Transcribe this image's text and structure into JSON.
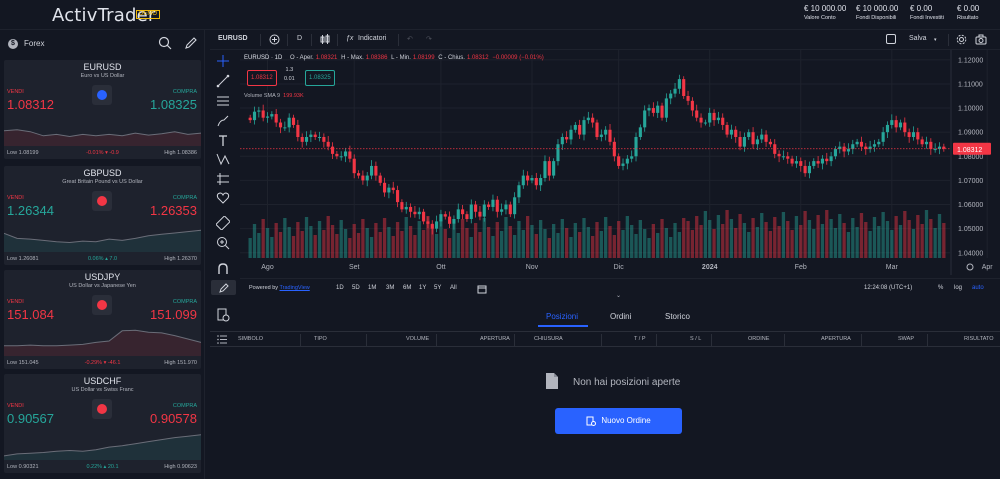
{
  "header": {
    "logo": "ActivTrader",
    "badge": "DEMO",
    "stats": [
      {
        "value": "€ 10 000.00",
        "label": "Valore Conto"
      },
      {
        "value": "€ 10 000.00",
        "label": "Fondi Disponibili"
      },
      {
        "value": "€ 0.00",
        "label": "Fondi Investiti"
      },
      {
        "value": "€ 0.00",
        "label": "Risultato"
      }
    ]
  },
  "sidebar": {
    "title": "Forex",
    "cards": [
      {
        "symbol": "EURUSD",
        "desc": "Euro vs US Dollar",
        "sell_label": "VENDI",
        "buy_label": "COMPRA",
        "sell": "1.08312",
        "buy": "1.08325",
        "sell_color": "red",
        "buy_color": "green",
        "low": "Low 1.08199",
        "change": "-0.01%  ▾ -0.9",
        "change_color": "red",
        "high": "High 1.08386",
        "flag_color": "#2962ff",
        "spark": [
          0.55,
          0.52,
          0.58,
          0.7,
          0.66,
          0.72,
          0.66,
          0.7,
          0.66,
          0.7,
          0.62,
          0.68,
          0.64,
          0.58,
          0.66,
          0.62
        ]
      },
      {
        "symbol": "GBPUSD",
        "desc": "Great Britain Pound vs US Dollar",
        "sell_label": "VENDI",
        "buy_label": "COMPRA",
        "sell": "1.26344",
        "buy": "1.26353",
        "sell_color": "green",
        "buy_color": "red",
        "low": "Low 1.26081",
        "change": "0.06%  ▴ 7.0",
        "change_color": "green",
        "high": "High 1.26370",
        "flag_color": "#f23645",
        "spark": [
          0.45,
          0.6,
          0.62,
          0.66,
          0.7,
          0.72,
          0.68,
          0.7,
          0.62,
          0.66,
          0.6,
          0.52,
          0.48,
          0.44,
          0.4,
          0.36
        ]
      },
      {
        "symbol": "USDJPY",
        "desc": "US Dollar vs Japanese Yen",
        "sell_label": "VENDI",
        "buy_label": "COMPRA",
        "sell": "151.084",
        "buy": "151.099",
        "sell_color": "red",
        "buy_color": "red",
        "low": "Low 151.045",
        "change": "-0.29%  ▾ -46.1",
        "change_color": "red",
        "high": "High 151.970",
        "flag_color": "#f23645",
        "spark": [
          0.7,
          0.7,
          0.68,
          0.7,
          0.7,
          0.68,
          0.66,
          0.6,
          0.56,
          0.26,
          0.24,
          0.3,
          0.32,
          0.4,
          0.5,
          0.6
        ]
      },
      {
        "symbol": "USDCHF",
        "desc": "US Dollar vs Swiss Franc",
        "sell_label": "VENDI",
        "buy_label": "COMPRA",
        "sell": "0.90567",
        "buy": "0.90578",
        "sell_color": "green",
        "buy_color": "red",
        "low": "Low 0.90321",
        "change": "0.22%  ▴ 20.1",
        "change_color": "green",
        "high": "High 0.90623",
        "flag_color": "#f23645",
        "spark": [
          0.88,
          0.82,
          0.8,
          0.78,
          0.74,
          0.72,
          0.74,
          0.7,
          0.62,
          0.58,
          0.52,
          0.46,
          0.4,
          0.34,
          0.3,
          0.26
        ]
      }
    ]
  },
  "toolbar": {
    "symbol": "EURUSD",
    "interval": "D",
    "indicators": "Indicatori",
    "save": "Salva"
  },
  "chart_legend": {
    "title": "EURUSD · 1D",
    "open_label": "O - Aper.",
    "open": "1.08321",
    "high_label": "H - Max.",
    "high": "1.08386",
    "low_label": "L - Min.",
    "low": "1.08199",
    "close_label": "C - Chius.",
    "close": "1.08312",
    "change": "−0.00009 (−0.01%)",
    "sell_price": "1.08312",
    "buy_price": "1.08325",
    "lot_top": "1.3",
    "lot_bottom": "0.01",
    "volume_label": "Volume",
    "volume_ma": "SMA 9",
    "volume_value": "199.93K"
  },
  "chart_data": {
    "type": "candlestick",
    "symbol": "EURUSD",
    "interval": "1D",
    "ylim": [
      1.037,
      1.122
    ],
    "y_ticks": [
      "1.12000",
      "1.11000",
      "1.10000",
      "1.09000",
      "1.08000",
      "1.07000",
      "1.06000",
      "1.05000",
      "1.04000"
    ],
    "y_values": [
      1.12,
      1.11,
      1.1,
      1.09,
      1.08,
      1.07,
      1.06,
      1.05,
      1.04
    ],
    "x_ticks": [
      "Ago",
      "Set",
      "Ott",
      "Nov",
      "Dic",
      "2024",
      "Feb",
      "Mar",
      "Apr"
    ],
    "x_tick_index": [
      4,
      24,
      44,
      65,
      85,
      106,
      127,
      148,
      170
    ],
    "last_price": "1.08312",
    "last_value": 1.08312,
    "closes": [
      1.095,
      1.0985,
      1.099,
      1.096,
      1.0965,
      1.0975,
      1.094,
      1.092,
      1.092,
      1.096,
      1.093,
      1.088,
      1.086,
      1.088,
      1.089,
      1.088,
      1.088,
      1.086,
      1.084,
      1.081,
      1.08,
      1.08,
      1.082,
      1.079,
      1.073,
      1.072,
      1.07,
      1.072,
      1.076,
      1.072,
      1.069,
      1.065,
      1.067,
      1.066,
      1.061,
      1.058,
      1.059,
      1.057,
      1.056,
      1.057,
      1.053,
      1.052,
      1.05,
      1.053,
      1.056,
      1.055,
      1.052,
      1.054,
      1.058,
      1.056,
      1.054,
      1.06,
      1.057,
      1.055,
      1.06,
      1.059,
      1.062,
      1.057,
      1.058,
      1.06,
      1.056,
      1.063,
      1.068,
      1.072,
      1.07,
      1.071,
      1.068,
      1.071,
      1.078,
      1.072,
      1.078,
      1.085,
      1.088,
      1.087,
      1.091,
      1.093,
      1.089,
      1.095,
      1.096,
      1.094,
      1.088,
      1.089,
      1.091,
      1.086,
      1.08,
      1.076,
      1.077,
      1.079,
      1.08,
      1.088,
      1.092,
      1.099,
      1.1,
      1.098,
      1.101,
      1.096,
      1.104,
      1.106,
      1.108,
      1.112,
      1.105,
      1.103,
      1.099,
      1.096,
      1.094,
      1.094,
      1.098,
      1.095,
      1.096,
      1.093,
      1.089,
      1.091,
      1.088,
      1.084,
      1.088,
      1.09,
      1.085,
      1.087,
      1.089,
      1.086,
      1.085,
      1.081,
      1.08,
      1.08,
      1.079,
      1.077,
      1.078,
      1.076,
      1.073,
      1.076,
      1.078,
      1.077,
      1.079,
      1.078,
      1.08,
      1.083,
      1.084,
      1.082,
      1.083,
      1.085,
      1.086,
      1.084,
      1.083,
      1.084,
      1.085,
      1.086,
      1.09,
      1.093,
      1.095,
      1.092,
      1.094,
      1.09,
      1.088,
      1.09,
      1.087,
      1.085,
      1.086,
      1.083,
      1.083,
      1.084,
      1.0831
    ]
  },
  "bottom_toolbar": {
    "powered": "Powered by",
    "powered_link": "TradingView",
    "ranges": [
      "1D",
      "5D",
      "1M",
      "3M",
      "6M",
      "1Y",
      "5Y",
      "All"
    ],
    "time": "12:24:08 (UTC+1)",
    "pct": "%",
    "log": "log",
    "auto": "auto"
  },
  "positions": {
    "tabs": [
      "Posizioni",
      "Ordini",
      "Storico"
    ],
    "columns": [
      "SIMBOLO",
      "TIPO",
      "VOLUME",
      "APERTURA",
      "CHIUSURA",
      "T / P",
      "S / L",
      "ORDINE",
      "APERTURA",
      "SWAP",
      "RISULTATO"
    ],
    "empty_text": "Non hai posizioni aperte",
    "new_order": "Nuovo Ordine"
  }
}
